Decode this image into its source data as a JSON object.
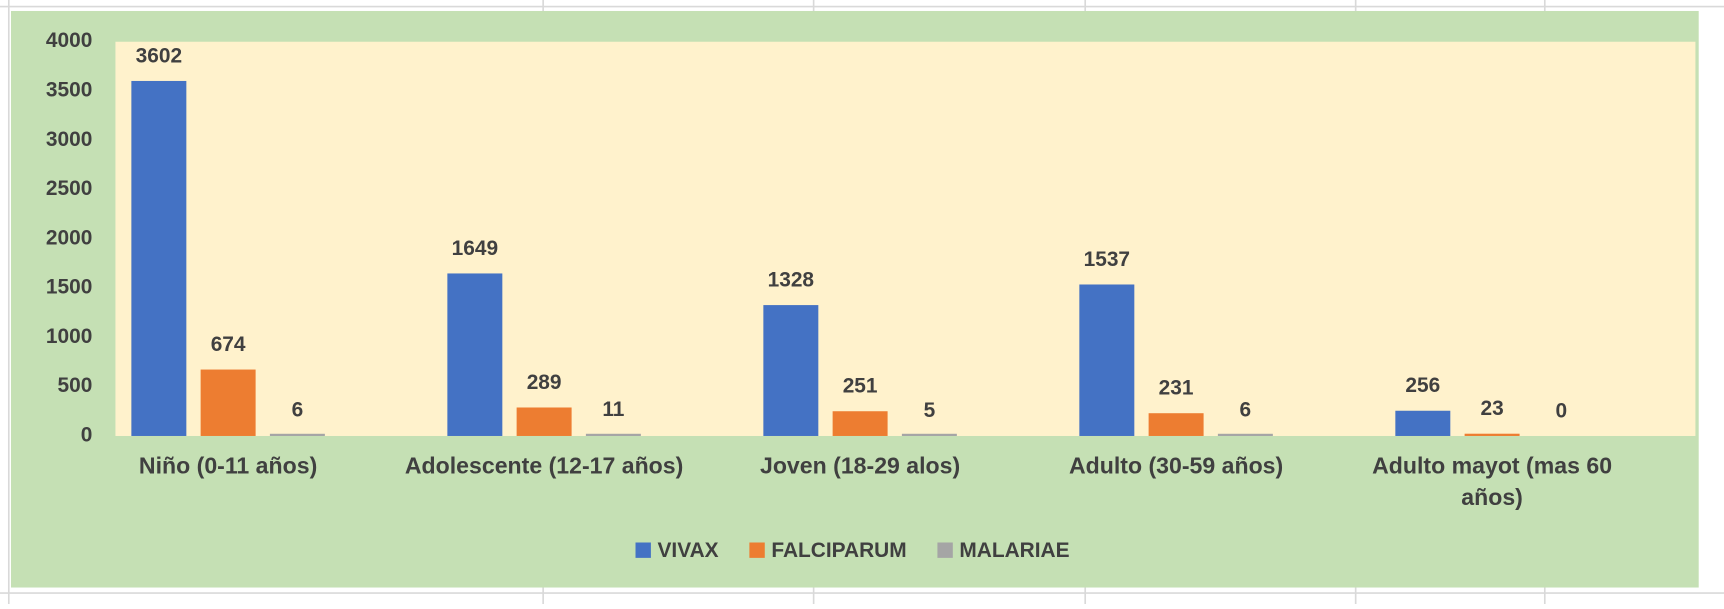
{
  "chart_data": {
    "type": "bar",
    "categories": [
      "Niño (0-11 años)",
      "Adolescente (12-17 años)",
      "Joven (18-29 alos)",
      "Adulto (30-59 años)",
      "Adulto mayot (mas 60 años)"
    ],
    "series": [
      {
        "name": "VIVAX",
        "color": "#4472c4",
        "values": [
          3602,
          1649,
          1328,
          1537,
          256
        ]
      },
      {
        "name": "FALCIPARUM",
        "color": "#ed7d31",
        "values": [
          674,
          289,
          251,
          231,
          23
        ]
      },
      {
        "name": "MALARIAE",
        "color": "#a5a5a5",
        "values": [
          6,
          11,
          5,
          6,
          0
        ]
      }
    ],
    "ylim": [
      0,
      4000
    ],
    "yticks": [
      0,
      500,
      1000,
      1500,
      2000,
      2500,
      3000,
      3500,
      4000
    ],
    "grid": false,
    "legend": "bottom"
  }
}
